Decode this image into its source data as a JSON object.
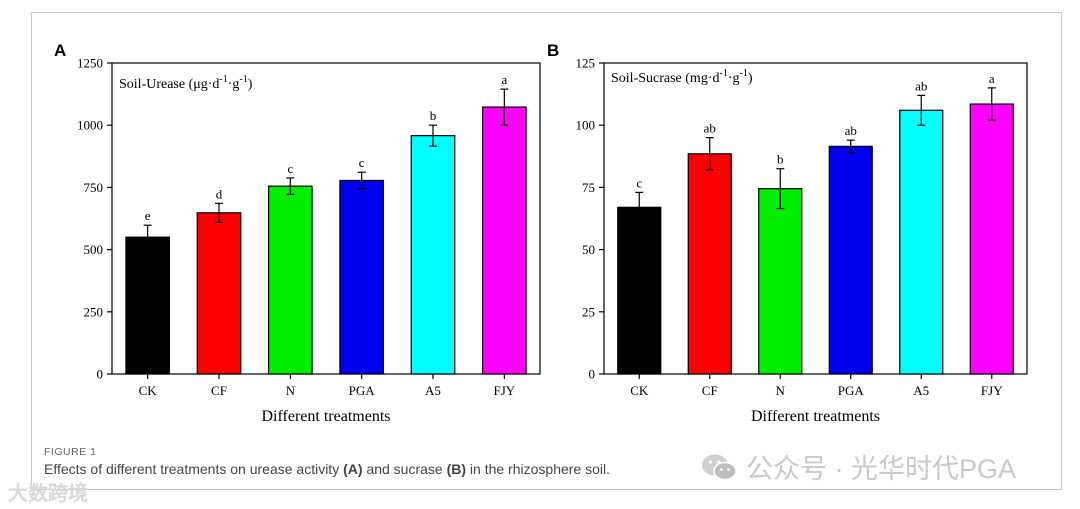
{
  "chart_data": [
    {
      "type": "bar",
      "panel_label": "A",
      "title": "Soil-Urease (μg·d",
      "title_unit_parts": [
        "Soil-Urease (μg·d",
        "-1",
        "·g",
        "-1",
        ")"
      ],
      "xlabel": "Different treatments",
      "ylabel": "",
      "ylim": [
        0,
        1250
      ],
      "yticks": [
        0,
        250,
        500,
        750,
        1000,
        1250
      ],
      "categories": [
        "CK",
        "CF",
        "N",
        "PGA",
        "A5",
        "FJY"
      ],
      "values": [
        550,
        648,
        755,
        778,
        958,
        1073
      ],
      "errors": [
        48,
        38,
        33,
        33,
        42,
        72
      ],
      "letters": [
        "e",
        "d",
        "c",
        "c",
        "b",
        "a"
      ],
      "colors": [
        "#000000",
        "#ff0000",
        "#00ee00",
        "#0000ee",
        "#00ffff",
        "#ff00ff"
      ]
    },
    {
      "type": "bar",
      "panel_label": "B",
      "title": "Soil-Sucrase (mg·d",
      "title_unit_parts": [
        "Soil-Sucrase (mg·d",
        "-1",
        "·g",
        "-1",
        ")"
      ],
      "xlabel": "Different treatments",
      "ylabel": "",
      "ylim": [
        0,
        125
      ],
      "yticks": [
        0,
        25,
        50,
        75,
        100,
        125
      ],
      "categories": [
        "CK",
        "CF",
        "N",
        "PGA",
        "A5",
        "FJY"
      ],
      "values": [
        67,
        88.5,
        74.5,
        91.5,
        106,
        108.5
      ],
      "errors": [
        6,
        6.5,
        8,
        2.5,
        6,
        6.5
      ],
      "letters": [
        "c",
        "ab",
        "b",
        "ab",
        "ab",
        "a"
      ],
      "colors": [
        "#000000",
        "#ff0000",
        "#00ee00",
        "#0000ee",
        "#00ffff",
        "#ff00ff"
      ]
    }
  ],
  "caption": {
    "figure_label": "FIGURE 1",
    "text_before_a": "Effects of different treatments on urease activity ",
    "ref_a": "(A)",
    "text_between": " and sucrase ",
    "ref_b": "(B)",
    "text_after_b": " in the rhizosphere soil."
  },
  "watermarks": {
    "right": "公众号 · 光华时代PGA",
    "left": "大数跨境"
  }
}
